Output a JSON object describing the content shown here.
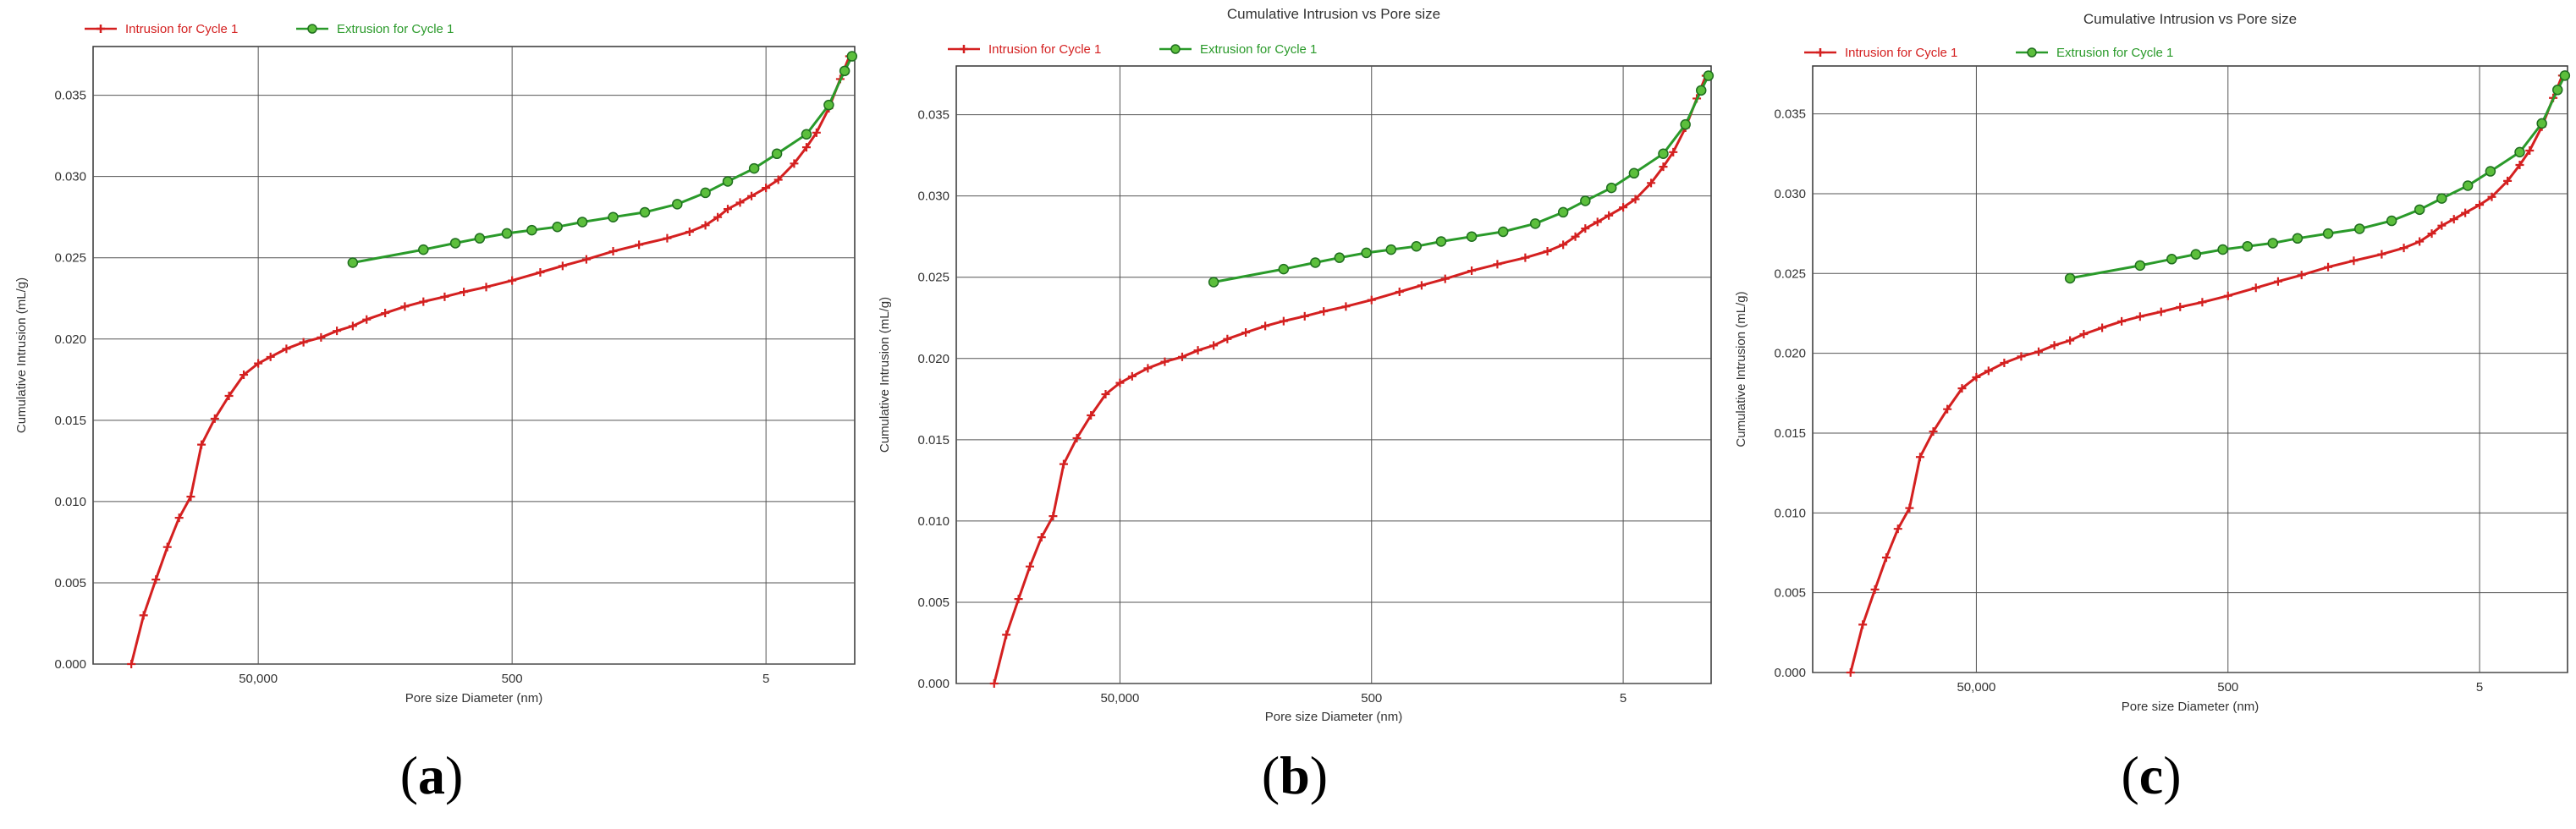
{
  "chart_data": [
    {
      "type": "line",
      "panel_label": "a",
      "title": "",
      "xlabel": "Pore size Diameter (nm)",
      "ylabel": "Cumulative Intrusion (mL/g)",
      "x_scale": "log",
      "x_reversed": true,
      "xlim": [
        1000000,
        1
      ],
      "ylim": [
        0,
        0.038
      ],
      "yticks": [
        "0.000",
        "0.005",
        "0.010",
        "0.015",
        "0.020",
        "0.025",
        "0.030",
        "0.035"
      ],
      "xticks": [
        "50,000",
        "500",
        "5"
      ],
      "grid": true,
      "legend_position": "top-left",
      "series": [
        {
          "name": "Intrusion for Cycle 1",
          "color": "#d42020",
          "marker": "plus",
          "x": [
            500000,
            400000,
            320000,
            260000,
            210000,
            170000,
            140000,
            110000,
            85000,
            65000,
            50000,
            40000,
            30000,
            22000,
            16000,
            12000,
            9000,
            7000,
            5000,
            3500,
            2500,
            1700,
            1200,
            800,
            500,
            300,
            200,
            130,
            80,
            50,
            30,
            20,
            15,
            12,
            10,
            8,
            6.5,
            5,
            4,
            3,
            2.4,
            2,
            1.6,
            1.3,
            1.1
          ],
          "y": [
            0.0,
            0.003,
            0.0052,
            0.0072,
            0.009,
            0.0103,
            0.0135,
            0.0151,
            0.0165,
            0.0178,
            0.0185,
            0.0189,
            0.0194,
            0.0198,
            0.0201,
            0.0205,
            0.0208,
            0.0212,
            0.0216,
            0.022,
            0.0223,
            0.0226,
            0.0229,
            0.0232,
            0.0236,
            0.0241,
            0.0245,
            0.0249,
            0.0254,
            0.0258,
            0.0262,
            0.0266,
            0.027,
            0.0275,
            0.028,
            0.0284,
            0.0288,
            0.0293,
            0.0298,
            0.0308,
            0.0318,
            0.0327,
            0.0342,
            0.036,
            0.0374
          ]
        },
        {
          "name": "Extrusion for Cycle 1",
          "color": "#2a9a2a",
          "marker": "circle",
          "x": [
            9000,
            2500,
            1400,
            900,
            550,
            350,
            220,
            140,
            80,
            45,
            25,
            15,
            10,
            6.2,
            4.1,
            2.4,
            1.6,
            1.2,
            1.05
          ],
          "y": [
            0.0247,
            0.0255,
            0.0259,
            0.0262,
            0.0265,
            0.0267,
            0.0269,
            0.0272,
            0.0275,
            0.0278,
            0.0283,
            0.029,
            0.0297,
            0.0305,
            0.0314,
            0.0326,
            0.0344,
            0.0365,
            0.0374
          ]
        }
      ]
    },
    {
      "type": "line",
      "panel_label": "b",
      "title": "Cumulative Intrusion vs Pore size",
      "xlabel": "Pore size Diameter (nm)",
      "ylabel": "Cumulative Intrusion (mL/g)",
      "x_scale": "log",
      "x_reversed": true,
      "xlim": [
        1000000,
        1
      ],
      "ylim": [
        0,
        0.038
      ],
      "yticks": [
        "0.000",
        "0.005",
        "0.010",
        "0.015",
        "0.020",
        "0.025",
        "0.030",
        "0.035"
      ],
      "xticks": [
        "50,000",
        "500",
        "5"
      ],
      "grid": true,
      "legend_position": "top-left",
      "series": [
        {
          "name": "Intrusion for Cycle 1",
          "color": "#d42020",
          "marker": "plus",
          "x": [
            500000,
            400000,
            320000,
            260000,
            210000,
            170000,
            140000,
            110000,
            85000,
            65000,
            50000,
            40000,
            30000,
            22000,
            16000,
            12000,
            9000,
            7000,
            5000,
            3500,
            2500,
            1700,
            1200,
            800,
            500,
            300,
            200,
            130,
            80,
            50,
            30,
            20,
            15,
            12,
            10,
            8,
            6.5,
            5,
            4,
            3,
            2.4,
            2,
            1.6,
            1.3,
            1.1
          ],
          "y": [
            0.0,
            0.003,
            0.0052,
            0.0072,
            0.009,
            0.0103,
            0.0135,
            0.0151,
            0.0165,
            0.0178,
            0.0185,
            0.0189,
            0.0194,
            0.0198,
            0.0201,
            0.0205,
            0.0208,
            0.0212,
            0.0216,
            0.022,
            0.0223,
            0.0226,
            0.0229,
            0.0232,
            0.0236,
            0.0241,
            0.0245,
            0.0249,
            0.0254,
            0.0258,
            0.0262,
            0.0266,
            0.027,
            0.0275,
            0.028,
            0.0284,
            0.0288,
            0.0293,
            0.0298,
            0.0308,
            0.0318,
            0.0327,
            0.0342,
            0.036,
            0.0374
          ]
        },
        {
          "name": "Extrusion for Cycle 1",
          "color": "#2a9a2a",
          "marker": "circle",
          "x": [
            9000,
            2500,
            1400,
            900,
            550,
            350,
            220,
            140,
            80,
            45,
            25,
            15,
            10,
            6.2,
            4.1,
            2.4,
            1.6,
            1.2,
            1.05
          ],
          "y": [
            0.0247,
            0.0255,
            0.0259,
            0.0262,
            0.0265,
            0.0267,
            0.0269,
            0.0272,
            0.0275,
            0.0278,
            0.0283,
            0.029,
            0.0297,
            0.0305,
            0.0314,
            0.0326,
            0.0344,
            0.0365,
            0.0374
          ]
        }
      ]
    },
    {
      "type": "line",
      "panel_label": "c",
      "title": "Cumulative Intrusion vs Pore size",
      "xlabel": "Pore size Diameter (nm)",
      "ylabel": "Cumulative Intrusion (mL/g)",
      "x_scale": "log",
      "x_reversed": true,
      "xlim": [
        1000000,
        1
      ],
      "ylim": [
        0,
        0.038
      ],
      "yticks": [
        "0.000",
        "0.005",
        "0.010",
        "0.015",
        "0.020",
        "0.025",
        "0.030",
        "0.035"
      ],
      "xticks": [
        "50,000",
        "500",
        "5"
      ],
      "grid": true,
      "legend_position": "top-left",
      "series": [
        {
          "name": "Intrusion for Cycle 1",
          "color": "#d42020",
          "marker": "plus",
          "x": [
            500000,
            400000,
            320000,
            260000,
            210000,
            170000,
            140000,
            110000,
            85000,
            65000,
            50000,
            40000,
            30000,
            22000,
            16000,
            12000,
            9000,
            7000,
            5000,
            3500,
            2500,
            1700,
            1200,
            800,
            500,
            300,
            200,
            130,
            80,
            50,
            30,
            20,
            15,
            12,
            10,
            8,
            6.5,
            5,
            4,
            3,
            2.4,
            2,
            1.6,
            1.3,
            1.1
          ],
          "y": [
            0.0,
            0.003,
            0.0052,
            0.0072,
            0.009,
            0.0103,
            0.0135,
            0.0151,
            0.0165,
            0.0178,
            0.0185,
            0.0189,
            0.0194,
            0.0198,
            0.0201,
            0.0205,
            0.0208,
            0.0212,
            0.0216,
            0.022,
            0.0223,
            0.0226,
            0.0229,
            0.0232,
            0.0236,
            0.0241,
            0.0245,
            0.0249,
            0.0254,
            0.0258,
            0.0262,
            0.0266,
            0.027,
            0.0275,
            0.028,
            0.0284,
            0.0288,
            0.0293,
            0.0298,
            0.0308,
            0.0318,
            0.0327,
            0.0342,
            0.036,
            0.0374
          ]
        },
        {
          "name": "Extrusion for Cycle 1",
          "color": "#2a9a2a",
          "marker": "circle",
          "x": [
            9000,
            2500,
            1400,
            900,
            550,
            350,
            220,
            140,
            80,
            45,
            25,
            15,
            10,
            6.2,
            4.1,
            2.4,
            1.6,
            1.2,
            1.05
          ],
          "y": [
            0.0247,
            0.0255,
            0.0259,
            0.0262,
            0.0265,
            0.0267,
            0.0269,
            0.0272,
            0.0275,
            0.0278,
            0.0283,
            0.029,
            0.0297,
            0.0305,
            0.0314,
            0.0326,
            0.0344,
            0.0365,
            0.0374
          ]
        }
      ]
    }
  ],
  "captions": [
    {
      "open": "(",
      "letter": "a",
      "close": ")"
    },
    {
      "open": "(",
      "letter": "b",
      "close": ")"
    },
    {
      "open": "(",
      "letter": "c",
      "close": ")"
    }
  ]
}
